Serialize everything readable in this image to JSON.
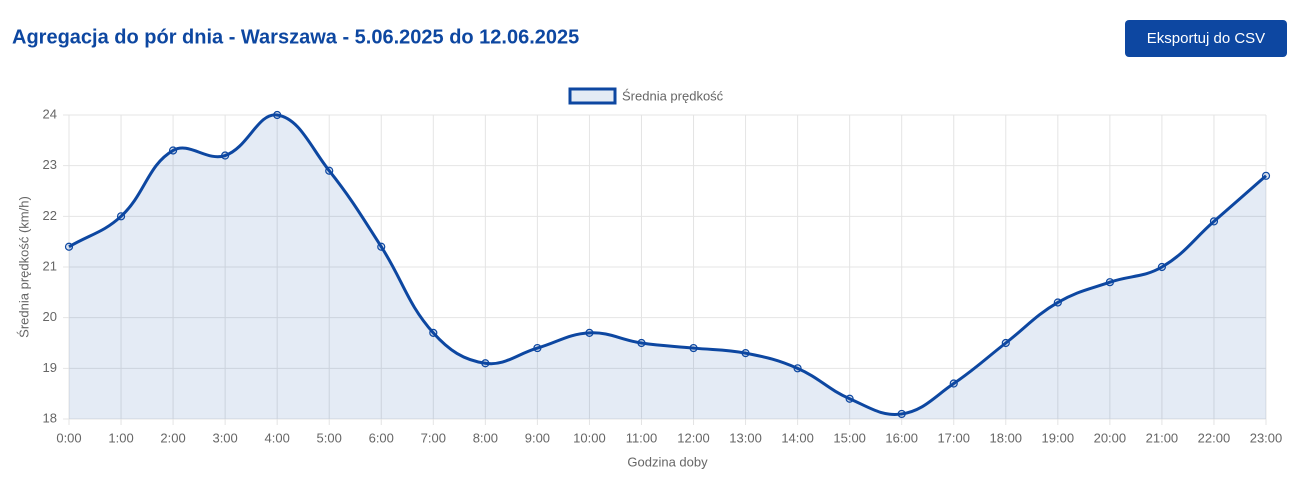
{
  "header": {
    "title": "Agregacja do pór dnia - Warszawa - 5.06.2025 do 12.06.2025",
    "button": "Eksportuj do CSV"
  },
  "chart_data": {
    "type": "line",
    "x_label": "Godzina doby",
    "y_label": "Średnia prędkość (km/h)",
    "categories": [
      "0:00",
      "1:00",
      "2:00",
      "3:00",
      "4:00",
      "5:00",
      "6:00",
      "7:00",
      "8:00",
      "9:00",
      "10:00",
      "11:00",
      "12:00",
      "13:00",
      "14:00",
      "15:00",
      "16:00",
      "17:00",
      "18:00",
      "19:00",
      "20:00",
      "21:00",
      "22:00",
      "23:00"
    ],
    "series": [
      {
        "name": "Średnia prędkość",
        "color": "#0d47a1",
        "values": [
          21.4,
          22.0,
          23.3,
          23.2,
          24.0,
          22.9,
          21.4,
          19.7,
          19.1,
          19.4,
          19.7,
          19.5,
          19.4,
          19.3,
          19.0,
          18.4,
          18.1,
          18.7,
          19.5,
          20.3,
          20.7,
          21.0,
          21.9,
          22.8
        ]
      }
    ],
    "ylim": [
      18,
      24
    ],
    "yticks": [
      18,
      19,
      20,
      21,
      22,
      23,
      24
    ],
    "grid": true,
    "legend": "top"
  }
}
